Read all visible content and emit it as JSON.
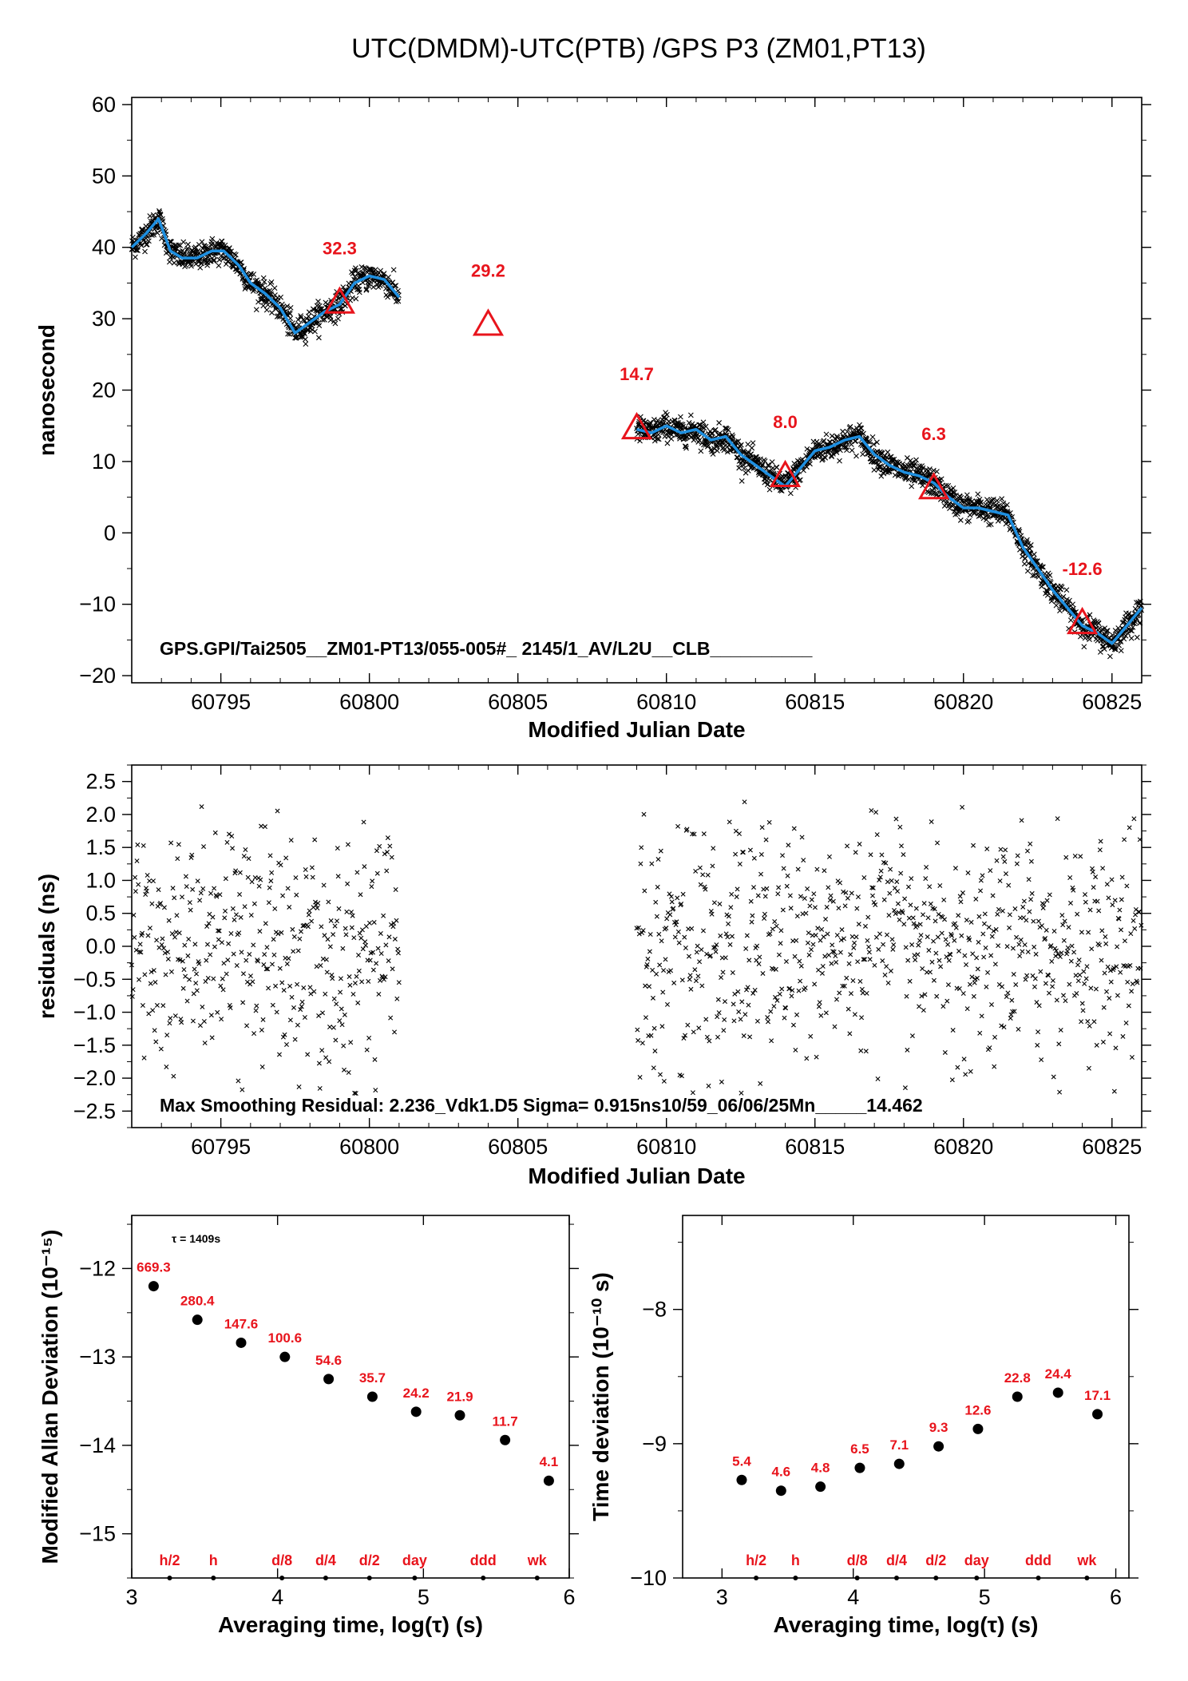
{
  "title": "UTC(DMDM)-UTC(PTB)  /GPS  P3  (ZM01,PT13)",
  "colors": {
    "points": "#000000",
    "smooth_line": "#1e8fe0",
    "markers": "#e8141c",
    "labels": "#e8141c",
    "axes": "#000000"
  },
  "chart_data": [
    {
      "id": "top",
      "type": "scatter",
      "xlabel": "Modified Julian Date",
      "ylabel": "nanosecond",
      "xlim": [
        60792,
        60826
      ],
      "ylim": [
        -21,
        61
      ],
      "xticks": [
        60795,
        60800,
        60805,
        60810,
        60815,
        60820,
        60825
      ],
      "yticks": [
        -20,
        -10,
        0,
        10,
        20,
        30,
        40,
        50,
        60
      ],
      "ytick_labels": [
        "−20",
        "−10",
        "0",
        "10",
        "20",
        "30",
        "40",
        "50",
        "60"
      ],
      "note": "GPS.GPI/Tai2505__ZM01-PT13/055-005#_  2145/1_AV/L2U__CLB__________",
      "smooth_series": {
        "name": "",
        "segments": [
          {
            "x": [
              60792,
              60792.5,
              60792.9,
              60793.3,
              60793.7,
              60794.2,
              60794.7,
              60795.1,
              60795.6,
              60796,
              60796.5,
              60797,
              60797.5,
              60798,
              60798.5,
              60799,
              60799.5,
              60800,
              60800.5,
              60801
            ],
            "y": [
              40,
              42,
              44,
              39.5,
              38.5,
              38.5,
              39.5,
              39.5,
              37.5,
              35,
              33.5,
              31.5,
              28,
              29.5,
              31,
              32,
              35,
              36,
              35.5,
              33
            ]
          },
          {
            "x": [
              60809,
              60809.5,
              60810,
              60810.5,
              60811,
              60811.5,
              60812,
              60812.5,
              60813,
              60813.5,
              60814,
              60814.5,
              60815,
              60815.5,
              60816,
              60816.5,
              60817,
              60817.5,
              60818,
              60818.5,
              60819,
              60819.5,
              60820,
              60820.5,
              60821,
              60821.5,
              60822,
              60822.5,
              60823,
              60823.5,
              60824,
              60824.5,
              60825,
              60825.5,
              60826
            ],
            "y": [
              14.5,
              14,
              15,
              14,
              14.5,
              13,
              13.5,
              11,
              9.5,
              8,
              6.5,
              9,
              11.5,
              12,
              13,
              13.5,
              11,
              9.5,
              8.5,
              8,
              7,
              5,
              3.5,
              3.5,
              3,
              2.5,
              -2,
              -5,
              -8,
              -10.5,
              -13,
              -14,
              -15.5,
              -13,
              -10.5
            ]
          }
        ]
      },
      "markers": {
        "x": [
          60799,
          60804,
          60809,
          60814,
          60819,
          60824
        ],
        "y": [
          32.3,
          29.2,
          14.7,
          8.0,
          6.3,
          -12.6
        ],
        "labels": [
          "32.3",
          "29.2",
          "14.7",
          "8.0",
          "6.3",
          "-12.6"
        ]
      }
    },
    {
      "id": "middle",
      "type": "scatter",
      "xlabel": "Modified Julian Date",
      "ylabel": "residuals (ns)",
      "xlim": [
        60792,
        60826
      ],
      "ylim": [
        -2.75,
        2.75
      ],
      "xticks": [
        60795,
        60800,
        60805,
        60810,
        60815,
        60820,
        60825
      ],
      "yticks": [
        -2.5,
        -2.0,
        -1.5,
        -1.0,
        -0.5,
        0.0,
        0.5,
        1.0,
        1.5,
        2.0,
        2.5
      ],
      "ytick_labels": [
        "−2.5",
        "−2.0",
        "−1.5",
        "−1.0",
        "−0.5",
        "0.0",
        "0.5",
        "1.0",
        "1.5",
        "2.0",
        "2.5"
      ],
      "x_ranges": [
        [
          60792,
          60801
        ],
        [
          60809,
          60826
        ]
      ],
      "sigma_ns": 0.915,
      "max_residual_ns": 2.236,
      "note": "Max Smoothing Residual: 2.236_Vdk1.D5  Sigma= 0.915ns10/59_06/06/25Mn_____14.462"
    },
    {
      "id": "mdev",
      "type": "scatter",
      "xlabel": "Averaging time, log(τ) (s)",
      "ylabel": "Modified Allan Deviation (10⁻¹⁵)",
      "xlim": [
        3,
        6
      ],
      "ylim": [
        -15.5,
        -11.4
      ],
      "xticks": [
        3,
        4,
        5,
        6
      ],
      "yticks": [
        -15,
        -14,
        -13,
        -12
      ],
      "ytick_labels": [
        "−15",
        "−14",
        "−13",
        "−12"
      ],
      "tau_note": "τ = 1409s",
      "x": [
        3.15,
        3.45,
        3.75,
        4.05,
        4.35,
        4.65,
        4.95,
        5.25,
        5.56,
        5.86
      ],
      "y": [
        -12.2,
        -12.58,
        -12.84,
        -13.0,
        -13.25,
        -13.45,
        -13.62,
        -13.66,
        -13.94,
        -14.4
      ],
      "labels": [
        "669.3",
        "280.4",
        "147.6",
        "100.6",
        "54.6",
        "35.7",
        "24.2",
        "21.9",
        "11.7",
        "4.1"
      ],
      "scale_marks": {
        "x": [
          3.26,
          3.56,
          4.03,
          4.33,
          4.63,
          4.94,
          5.41,
          5.78
        ],
        "labels": [
          "h/2",
          "h",
          "d/8",
          "d/4",
          "d/2",
          "day",
          "ddd",
          "wk"
        ]
      }
    },
    {
      "id": "tdev",
      "type": "scatter",
      "xlabel": "Averaging time, log(τ) (s)",
      "ylabel": "Time deviation (10⁻¹⁰ s)",
      "xlim": [
        2.7,
        6.1
      ],
      "ylim": [
        -10,
        -7.3
      ],
      "xticks": [
        3,
        4,
        5,
        6
      ],
      "yticks": [
        -10,
        -9,
        -8
      ],
      "ytick_labels": [
        "−10",
        "−9",
        "−8"
      ],
      "x": [
        3.15,
        3.45,
        3.75,
        4.05,
        4.35,
        4.65,
        4.95,
        5.25,
        5.56,
        5.86
      ],
      "y": [
        -9.27,
        -9.35,
        -9.32,
        -9.18,
        -9.15,
        -9.02,
        -8.89,
        -8.65,
        -8.62,
        -8.78
      ],
      "labels": [
        "5.4",
        "4.6",
        "4.8",
        "6.5",
        "7.1",
        "9.3",
        "12.6",
        "22.8",
        "24.4",
        "17.1"
      ],
      "scale_marks": {
        "x": [
          3.26,
          3.56,
          4.03,
          4.33,
          4.63,
          4.94,
          5.41,
          5.78
        ],
        "labels": [
          "h/2",
          "h",
          "d/8",
          "d/4",
          "d/2",
          "day",
          "ddd",
          "wk"
        ]
      }
    }
  ]
}
